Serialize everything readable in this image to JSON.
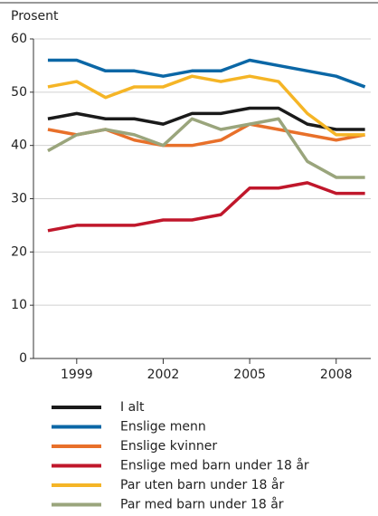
{
  "chart_data": {
    "type": "line",
    "y_label": "Prosent",
    "x": [
      1998,
      1999,
      2000,
      2001,
      2002,
      2003,
      2004,
      2005,
      2006,
      2007,
      2008,
      2009
    ],
    "xlim": [
      1997.5,
      2009.2
    ],
    "xticks": [
      1999,
      2002,
      2005,
      2008
    ],
    "ylim": [
      0,
      60
    ],
    "yticks": [
      0,
      10,
      20,
      30,
      40,
      50,
      60
    ],
    "grid": true,
    "series": [
      {
        "name": "I alt",
        "color": "#1a1a1a",
        "values": [
          45,
          46,
          45,
          45,
          44,
          46,
          46,
          47,
          47,
          44,
          43,
          43
        ]
      },
      {
        "name": "Enslige menn",
        "color": "#0b67a6",
        "values": [
          56,
          56,
          54,
          54,
          53,
          54,
          54,
          56,
          55,
          54,
          53,
          51
        ]
      },
      {
        "name": "Enslige kvinner",
        "color": "#e8702a",
        "values": [
          43,
          42,
          43,
          41,
          40,
          40,
          41,
          44,
          43,
          42,
          41,
          42
        ]
      },
      {
        "name": "Enslige med barn under 18 år",
        "color": "#c0172b",
        "values": [
          24,
          25,
          25,
          25,
          26,
          26,
          27,
          32,
          32,
          33,
          31,
          31
        ]
      },
      {
        "name": "Par uten barn under 18 år",
        "color": "#f5b526",
        "values": [
          51,
          52,
          49,
          51,
          51,
          53,
          52,
          53,
          52,
          46,
          42,
          42
        ]
      },
      {
        "name": "Par med barn under 18 år",
        "color": "#9aa57c",
        "values": [
          39,
          42,
          43,
          42,
          40,
          45,
          43,
          44,
          45,
          37,
          34,
          34
        ]
      }
    ]
  }
}
